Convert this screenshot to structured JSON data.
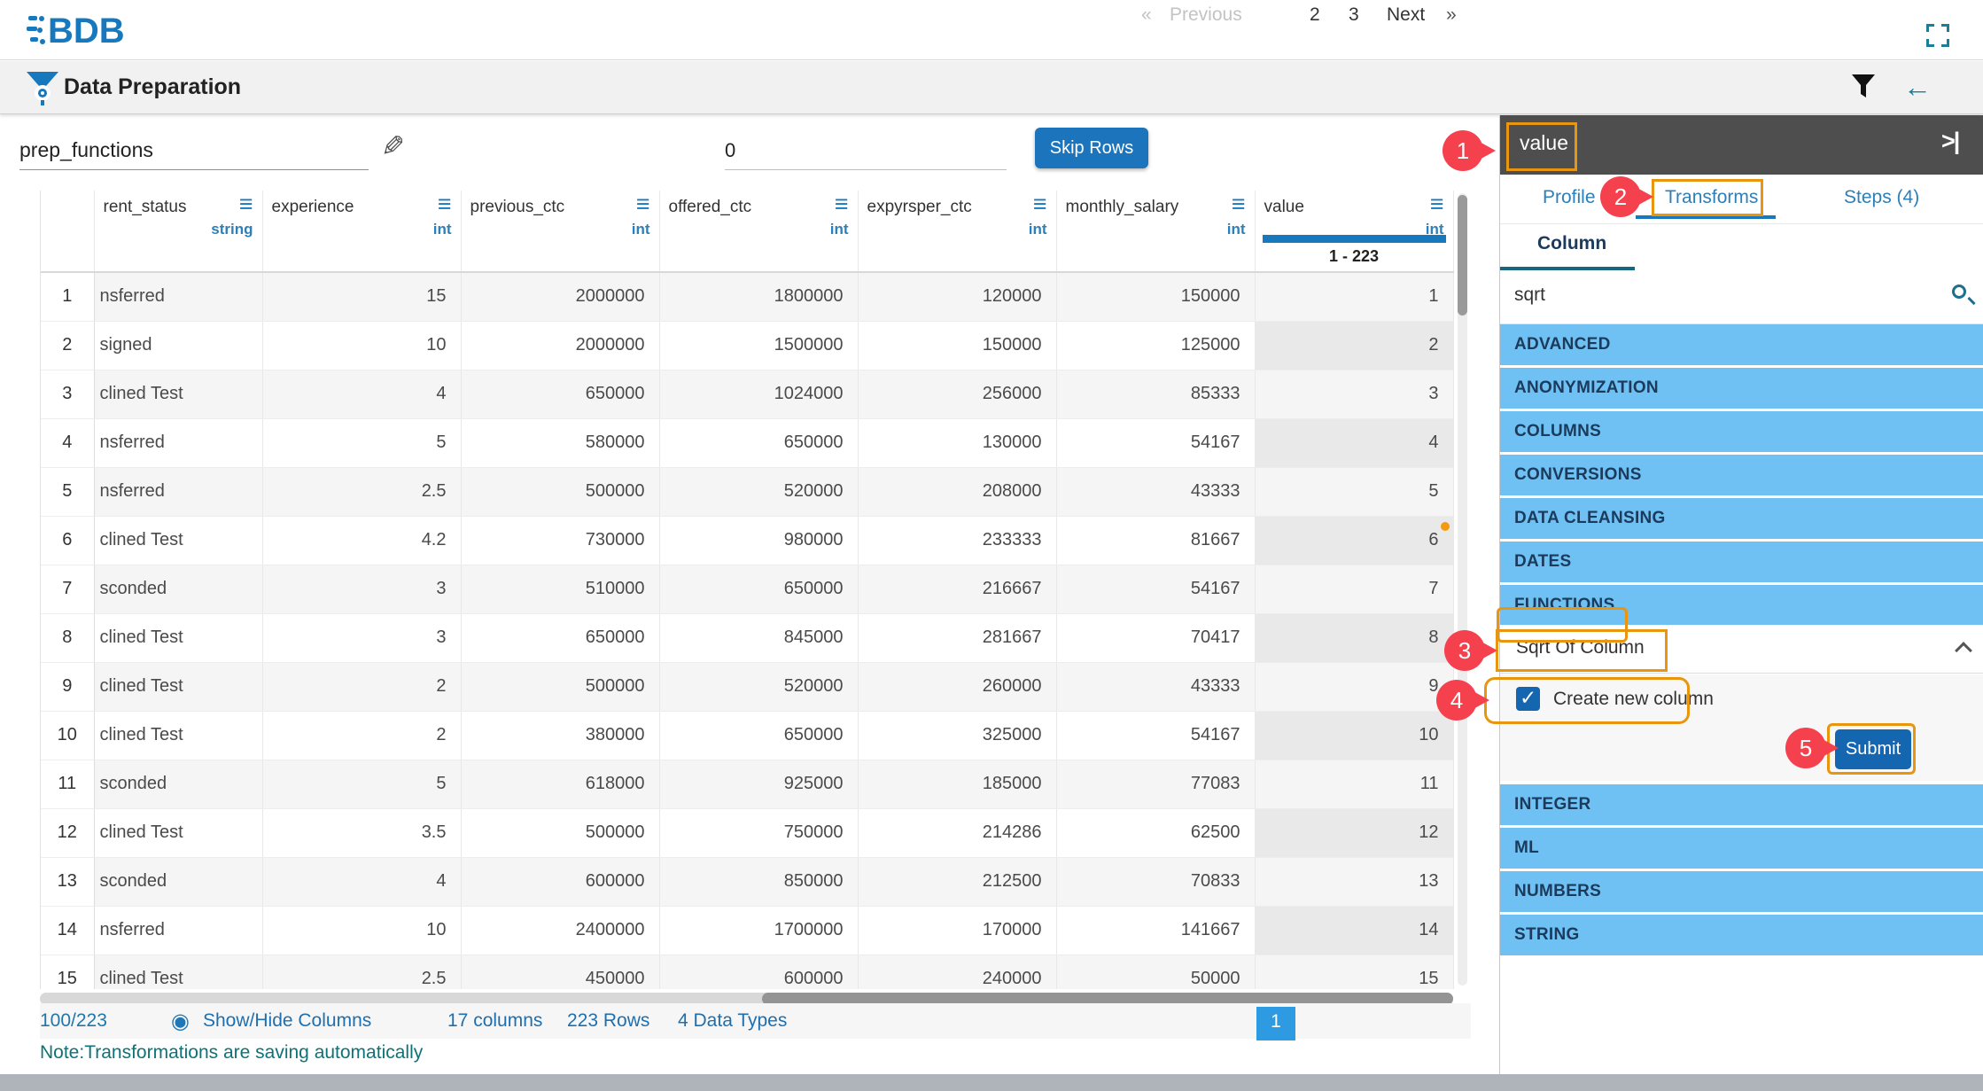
{
  "topbar": {
    "logo_text": "BDB"
  },
  "appbar": {
    "title": "Data Preparation"
  },
  "toolbar": {
    "dataset_name": "prep_functions",
    "skip_rows_value": "0",
    "skip_rows_label": "Skip Rows"
  },
  "table": {
    "columns": [
      {
        "name": "rent_status",
        "type": "string"
      },
      {
        "name": "experience",
        "type": "int"
      },
      {
        "name": "previous_ctc",
        "type": "int"
      },
      {
        "name": "offered_ctc",
        "type": "int"
      },
      {
        "name": "expyrsper_ctc",
        "type": "int"
      },
      {
        "name": "monthly_salary",
        "type": "int"
      },
      {
        "name": "value",
        "type": "int",
        "range": "1 - 223",
        "selected": true
      }
    ],
    "rows": [
      [
        "nsferred",
        "15",
        "2000000",
        "1800000",
        "120000",
        "150000",
        "1"
      ],
      [
        "signed",
        "10",
        "2000000",
        "1500000",
        "150000",
        "125000",
        "2"
      ],
      [
        "clined Test",
        "4",
        "650000",
        "1024000",
        "256000",
        "85333",
        "3"
      ],
      [
        "nsferred",
        "5",
        "580000",
        "650000",
        "130000",
        "54167",
        "4"
      ],
      [
        "nsferred",
        "2.5",
        "500000",
        "520000",
        "208000",
        "43333",
        "5"
      ],
      [
        "clined Test",
        "4.2",
        "730000",
        "980000",
        "233333",
        "81667",
        "6"
      ],
      [
        "sconded",
        "3",
        "510000",
        "650000",
        "216667",
        "54167",
        "7"
      ],
      [
        "clined Test",
        "3",
        "650000",
        "845000",
        "281667",
        "70417",
        "8"
      ],
      [
        "clined Test",
        "2",
        "500000",
        "520000",
        "260000",
        "43333",
        "9"
      ],
      [
        "clined Test",
        "2",
        "380000",
        "650000",
        "325000",
        "54167",
        "10"
      ],
      [
        "sconded",
        "5",
        "618000",
        "925000",
        "185000",
        "77083",
        "11"
      ],
      [
        "clined Test",
        "3.5",
        "500000",
        "750000",
        "214286",
        "62500",
        "12"
      ],
      [
        "sconded",
        "4",
        "600000",
        "850000",
        "212500",
        "70833",
        "13"
      ],
      [
        "nsferred",
        "10",
        "2400000",
        "1700000",
        "170000",
        "141667",
        "14"
      ],
      [
        "clined Test",
        "2.5",
        "450000",
        "600000",
        "240000",
        "50000",
        "15"
      ]
    ],
    "flagged_row": 6,
    "flag_color": "#f29a10"
  },
  "statusbar": {
    "count": "100/223",
    "show_hide": "Show/Hide Columns",
    "columns_info": "17 columns",
    "rows_info": "223 Rows",
    "types_info": "4 Data Types",
    "note": "Note:Transformations are saving automatically"
  },
  "pagination": {
    "first": "«",
    "prev": "Previous",
    "pages": [
      "1",
      "2",
      "3"
    ],
    "active_page": "1",
    "next": "Next",
    "last": "»"
  },
  "panel": {
    "header": "value",
    "tabs": [
      {
        "label": "Profile"
      },
      {
        "label": "Transforms"
      },
      {
        "label": "Steps (4)"
      }
    ],
    "active_tab": "Transforms",
    "subtab": "Column",
    "search_value": "sqrt",
    "categories_top": [
      "ADVANCED",
      "ANONYMIZATION",
      "COLUMNS",
      "CONVERSIONS",
      "DATA CLEANSING",
      "DATES",
      "FUNCTIONS"
    ],
    "expanded_item": "Sqrt Of Column",
    "checkbox_label": "Create new column",
    "checkbox_checked": true,
    "checkbox_tick": "✓",
    "submit_label": "Submit",
    "categories_bottom": [
      "INTEGER",
      "ML",
      "NUMBERS",
      "STRING"
    ]
  },
  "annotations": [
    "1",
    "2",
    "3",
    "4",
    "5"
  ],
  "icons": {
    "logo": "bdb-logo",
    "app": "funnel-gear-icon",
    "filter": "filter-funnel-icon",
    "back": "left-arrow-icon",
    "fullscreen": "fullscreen-icon",
    "edit": "pencil-icon",
    "search": "magnifier-icon",
    "eye": "eye-icon",
    "collapse": "collapse-right-icon",
    "column_menu": "column-menu-icon",
    "menu_glyph": "≡",
    "eye_glyph": "◉",
    "pencil_glyph": "✎",
    "collapse_glyph": ">|"
  },
  "colors": {
    "accent_blue": "#1b74bc",
    "category_blue": "#6ec1f2",
    "annotation_red": "#f5404e",
    "annotation_orange": "#e8960f",
    "teal": "#0d7377",
    "panel_header_gray": "#4e4e4e"
  }
}
